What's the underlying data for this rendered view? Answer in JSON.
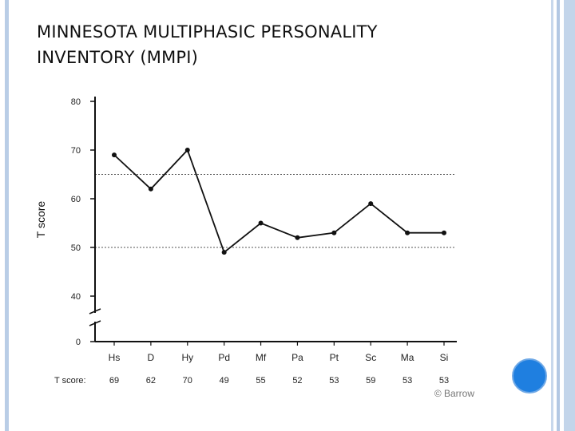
{
  "slide": {
    "title_line1": "MINNESOTA MULTIPHASIC PERSONALITY",
    "title_line2": "INVENTORY (MMPI)"
  },
  "chart_data": {
    "type": "line",
    "ylabel": "T score",
    "yticks": [
      80,
      70,
      60,
      50,
      40,
      0
    ],
    "ylim": [
      40,
      80
    ],
    "axis_break": true,
    "reference_lines": [
      65,
      50
    ],
    "categories": [
      "Hs",
      "D",
      "Hy",
      "Pd",
      "Mf",
      "Pa",
      "Pt",
      "Sc",
      "Ma",
      "Si"
    ],
    "series": [
      {
        "values": [
          69,
          62,
          70,
          49,
          55,
          52,
          53,
          59,
          53,
          53
        ]
      }
    ],
    "score_row_label": "T score:",
    "score_row": [
      "69",
      "62",
      "70",
      "49",
      "55",
      "52",
      "53",
      "59",
      "53",
      "53"
    ],
    "credit": "© Barrow"
  },
  "colors": {
    "line": "#111111",
    "accent_dot": "#1f7fe0",
    "side_band": "#b9cde6"
  }
}
